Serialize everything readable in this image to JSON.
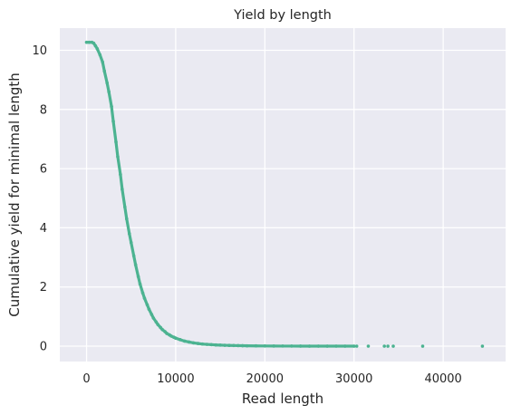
{
  "chart_data": {
    "type": "scatter",
    "title": "Yield by length",
    "xlabel": "Read length",
    "ylabel": "Cumulative yield for minimal length",
    "xlim": [
      -3000,
      47000
    ],
    "ylim": [
      -0.52,
      10.75
    ],
    "xticks": [
      0,
      10000,
      20000,
      30000,
      40000
    ],
    "yticks": [
      0,
      2,
      4,
      6,
      8,
      10
    ],
    "xtick_labels": [
      "0",
      "10000",
      "20000",
      "30000",
      "40000"
    ],
    "ytick_labels": [
      "0",
      "2",
      "4",
      "6",
      "8",
      "10"
    ],
    "grid": true,
    "background_color": "#eaeaf2",
    "grid_color": "#ffffff",
    "series": [
      {
        "color": "#4cb391",
        "points": [
          [
            0,
            10.27
          ],
          [
            300,
            10.27
          ],
          [
            600,
            10.27
          ],
          [
            800,
            10.24
          ],
          [
            1000,
            10.15
          ],
          [
            1200,
            10.05
          ],
          [
            1500,
            9.85
          ],
          [
            1800,
            9.6
          ],
          [
            2000,
            9.3
          ],
          [
            2300,
            8.9
          ],
          [
            2500,
            8.6
          ],
          [
            2800,
            8.1
          ],
          [
            3000,
            7.6
          ],
          [
            3300,
            6.9
          ],
          [
            3500,
            6.4
          ],
          [
            3800,
            5.8
          ],
          [
            4000,
            5.3
          ],
          [
            4300,
            4.7
          ],
          [
            4500,
            4.3
          ],
          [
            4800,
            3.8
          ],
          [
            5000,
            3.5
          ],
          [
            5300,
            3.05
          ],
          [
            5500,
            2.75
          ],
          [
            5800,
            2.35
          ],
          [
            6000,
            2.1
          ],
          [
            6300,
            1.8
          ],
          [
            6500,
            1.62
          ],
          [
            6800,
            1.4
          ],
          [
            7000,
            1.25
          ],
          [
            7300,
            1.07
          ],
          [
            7500,
            0.95
          ],
          [
            7800,
            0.82
          ],
          [
            8000,
            0.73
          ],
          [
            8300,
            0.63
          ],
          [
            8500,
            0.56
          ],
          [
            8800,
            0.49
          ],
          [
            9000,
            0.43
          ],
          [
            9300,
            0.38
          ],
          [
            9500,
            0.34
          ],
          [
            9800,
            0.3
          ],
          [
            10000,
            0.27
          ],
          [
            10500,
            0.22
          ],
          [
            11000,
            0.17
          ],
          [
            11500,
            0.14
          ],
          [
            12000,
            0.11
          ],
          [
            12500,
            0.09
          ],
          [
            13000,
            0.07
          ],
          [
            13500,
            0.06
          ],
          [
            14000,
            0.05
          ],
          [
            14500,
            0.04
          ],
          [
            15000,
            0.035
          ],
          [
            15500,
            0.03
          ],
          [
            16000,
            0.025
          ],
          [
            16500,
            0.022
          ],
          [
            17000,
            0.018
          ],
          [
            17500,
            0.015
          ],
          [
            18000,
            0.012
          ],
          [
            19000,
            0.009
          ],
          [
            20000,
            0.006
          ],
          [
            21000,
            0.004
          ],
          [
            22000,
            0.003
          ],
          [
            23000,
            0.002
          ],
          [
            24000,
            0.0015
          ],
          [
            25000,
            0.001
          ],
          [
            26000,
            0.0008
          ],
          [
            27000,
            0.0006
          ],
          [
            28000,
            0.0005
          ],
          [
            29000,
            0.0004
          ],
          [
            30000,
            0.0003
          ],
          [
            30300,
            0.0003
          ],
          [
            31600,
            0.0002
          ],
          [
            33400,
            0.0002
          ],
          [
            33800,
            0.0001
          ],
          [
            34400,
            0.0001
          ],
          [
            37700,
            0.0001
          ],
          [
            44400,
            0.0001
          ]
        ]
      }
    ]
  }
}
